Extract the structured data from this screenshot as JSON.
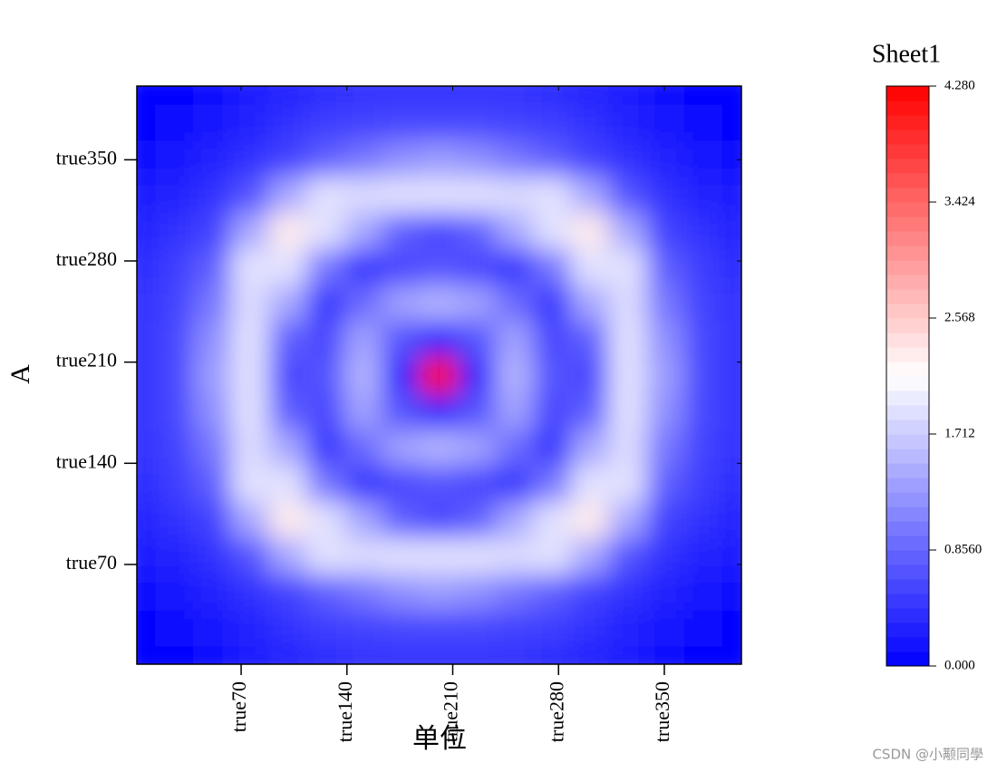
{
  "chart_data": {
    "type": "contour",
    "title": "Sheet1",
    "x_label": "单位",
    "y_label": "A",
    "watermark": "CSDN @小颟同學",
    "x": [
      1,
      26,
      51,
      76,
      101,
      126,
      151,
      176,
      201,
      226,
      251,
      276,
      301,
      326,
      351,
      376,
      401
    ],
    "y": [
      1,
      26,
      51,
      76,
      101,
      126,
      151,
      176,
      201,
      226,
      251,
      276,
      301,
      326,
      351,
      376,
      401
    ],
    "z": [
      [
        0,
        0.05,
        0.1,
        0.25,
        0.3,
        0.35,
        0.4,
        0.4,
        0.4,
        0.4,
        0.4,
        0.35,
        0.3,
        0.25,
        0.1,
        0.05,
        0
      ],
      [
        0.05,
        0.1,
        0.2,
        0.3,
        0.4,
        0.5,
        0.55,
        0.6,
        0.6,
        0.6,
        0.55,
        0.5,
        0.4,
        0.3,
        0.2,
        0.1,
        0.05
      ],
      [
        0.1,
        0.2,
        0.3,
        0.4,
        0.55,
        0.8,
        1.0,
        1.2,
        1.3,
        1.2,
        1.0,
        0.8,
        0.55,
        0.4,
        0.3,
        0.2,
        0.1
      ],
      [
        0.25,
        0.3,
        0.4,
        0.7,
        1.4,
        1.9,
        1.85,
        1.9,
        1.9,
        1.9,
        1.85,
        1.9,
        1.4,
        0.7,
        0.4,
        0.3,
        0.25
      ],
      [
        0.3,
        0.4,
        0.55,
        1.4,
        2.3,
        1.9,
        1.4,
        0.8,
        0.6,
        0.8,
        1.4,
        1.9,
        2.3,
        1.4,
        0.55,
        0.4,
        0.3
      ],
      [
        0.35,
        0.5,
        0.8,
        1.9,
        1.9,
        1.0,
        0.45,
        0.6,
        0.7,
        0.6,
        0.45,
        1.0,
        1.9,
        1.9,
        0.8,
        0.5,
        0.35
      ],
      [
        0.4,
        0.55,
        1.0,
        1.85,
        1.4,
        0.45,
        0.9,
        1.35,
        1.5,
        1.35,
        0.9,
        0.45,
        1.4,
        1.85,
        1.0,
        0.55,
        0.4
      ],
      [
        0.4,
        0.6,
        1.2,
        1.9,
        0.8,
        0.6,
        1.35,
        0.7,
        0.3,
        0.7,
        1.35,
        0.6,
        0.8,
        1.9,
        1.2,
        0.6,
        0.4
      ],
      [
        0.4,
        0.6,
        1.3,
        1.9,
        0.6,
        0.7,
        1.5,
        0.3,
        4.28,
        0.3,
        1.5,
        0.7,
        0.6,
        1.9,
        1.3,
        0.6,
        0.4
      ],
      [
        0.4,
        0.6,
        1.2,
        1.9,
        0.8,
        0.6,
        1.35,
        0.7,
        0.3,
        0.7,
        1.35,
        0.6,
        0.8,
        1.9,
        1.2,
        0.6,
        0.4
      ],
      [
        0.4,
        0.55,
        1.0,
        1.85,
        1.4,
        0.45,
        0.9,
        1.35,
        1.5,
        1.35,
        0.9,
        0.45,
        1.4,
        1.85,
        1.0,
        0.55,
        0.4
      ],
      [
        0.35,
        0.5,
        0.8,
        1.9,
        1.9,
        1.0,
        0.45,
        0.6,
        0.7,
        0.6,
        0.45,
        1.0,
        1.9,
        1.9,
        0.8,
        0.5,
        0.35
      ],
      [
        0.3,
        0.4,
        0.55,
        1.4,
        2.3,
        1.9,
        1.4,
        0.8,
        0.6,
        0.8,
        1.4,
        1.9,
        2.3,
        1.4,
        0.55,
        0.4,
        0.3
      ],
      [
        0.25,
        0.3,
        0.4,
        0.7,
        1.4,
        1.9,
        1.85,
        1.9,
        1.9,
        1.9,
        1.85,
        1.9,
        1.4,
        0.7,
        0.4,
        0.3,
        0.25
      ],
      [
        0.1,
        0.2,
        0.3,
        0.4,
        0.55,
        0.8,
        1.0,
        1.2,
        1.3,
        1.2,
        1.0,
        0.8,
        0.55,
        0.4,
        0.3,
        0.2,
        0.1
      ],
      [
        0.05,
        0.1,
        0.2,
        0.3,
        0.4,
        0.5,
        0.55,
        0.6,
        0.6,
        0.6,
        0.55,
        0.5,
        0.4,
        0.3,
        0.2,
        0.1,
        0.05
      ],
      [
        0,
        0.05,
        0.1,
        0.25,
        0.3,
        0.35,
        0.4,
        0.4,
        0.4,
        0.4,
        0.4,
        0.35,
        0.3,
        0.25,
        0.1,
        0.05,
        0
      ]
    ],
    "xlim": [
      1,
      401
    ],
    "ylim": [
      1,
      401
    ],
    "xticks": [
      {
        "value": 70,
        "label": "true70"
      },
      {
        "value": 140,
        "label": "true140"
      },
      {
        "value": 210,
        "label": "true210"
      },
      {
        "value": 280,
        "label": "true280"
      },
      {
        "value": 350,
        "label": "true350"
      }
    ],
    "yticks": [
      {
        "value": 70,
        "label": "true70"
      },
      {
        "value": 140,
        "label": "true140"
      },
      {
        "value": 210,
        "label": "true210"
      },
      {
        "value": 280,
        "label": "true280"
      },
      {
        "value": 350,
        "label": "true350"
      }
    ],
    "zlim": [
      0,
      4.28
    ],
    "zticks": [
      {
        "value": 0,
        "label": "0.000"
      },
      {
        "value": 0.856,
        "label": "0.8560"
      },
      {
        "value": 1.712,
        "label": "1.712"
      },
      {
        "value": 2.568,
        "label": "2.568"
      },
      {
        "value": 3.424,
        "label": "3.424"
      },
      {
        "value": 4.28,
        "label": "4.280"
      }
    ],
    "colormap": [
      "#0000ff",
      "#ffffff",
      "#ff0000"
    ]
  }
}
